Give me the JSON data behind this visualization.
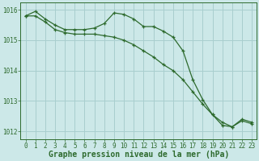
{
  "line1_x": [
    0,
    1,
    2,
    3,
    4,
    5,
    6,
    7,
    8,
    9,
    10,
    11,
    12,
    13,
    14,
    15,
    16,
    17,
    18,
    19,
    20,
    21,
    22,
    23
  ],
  "line1_y": [
    1015.8,
    1015.95,
    1015.7,
    1015.5,
    1015.35,
    1015.35,
    1015.35,
    1015.4,
    1015.55,
    1015.9,
    1015.85,
    1015.7,
    1015.45,
    1015.45,
    1015.3,
    1015.1,
    1014.65,
    1013.7,
    1013.05,
    1012.55,
    1012.2,
    1012.15,
    1012.4,
    1012.3
  ],
  "line2_x": [
    0,
    1,
    2,
    3,
    4,
    5,
    6,
    7,
    8,
    9,
    10,
    11,
    12,
    13,
    14,
    15,
    16,
    17,
    18,
    19,
    20,
    21,
    22,
    23
  ],
  "line2_y": [
    1015.8,
    1015.8,
    1015.6,
    1015.35,
    1015.25,
    1015.2,
    1015.2,
    1015.2,
    1015.15,
    1015.1,
    1015.0,
    1014.85,
    1014.65,
    1014.45,
    1014.2,
    1014.0,
    1013.7,
    1013.3,
    1012.9,
    1012.55,
    1012.3,
    1012.15,
    1012.35,
    1012.25
  ],
  "line_color": "#2d6a2d",
  "bg_color": "#cce8e8",
  "grid_color": "#a8cece",
  "xlabel": "Graphe pression niveau de la mer (hPa)",
  "ylim": [
    1011.75,
    1016.25
  ],
  "xlim": [
    -0.5,
    23.5
  ],
  "yticks": [
    1012,
    1013,
    1014,
    1015,
    1016
  ],
  "xticks": [
    0,
    1,
    2,
    3,
    4,
    5,
    6,
    7,
    8,
    9,
    10,
    11,
    12,
    13,
    14,
    15,
    16,
    17,
    18,
    19,
    20,
    21,
    22,
    23
  ],
  "tick_fontsize": 5.5,
  "xlabel_fontsize": 7.0
}
